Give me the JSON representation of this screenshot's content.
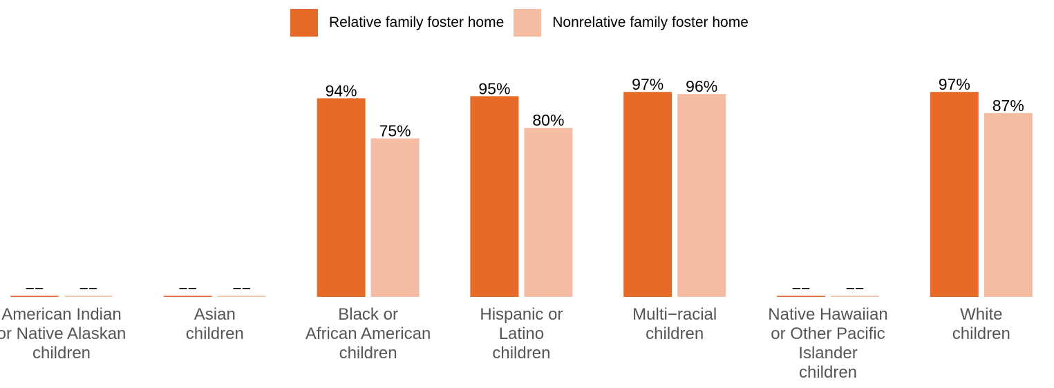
{
  "legend": {
    "items": [
      {
        "label": "Relative family foster home",
        "color": "#E86A28"
      },
      {
        "label": "Nonrelative family foster home",
        "color": "#F4BDA3"
      }
    ]
  },
  "chart_data": {
    "type": "bar",
    "title": "",
    "xlabel": "",
    "ylabel": "",
    "ylim": [
      0,
      100
    ],
    "grid": false,
    "legend_position": "top-center",
    "categories": [
      "American Indian\nor Native Alaskan\nchildren",
      "Asian\nchildren",
      "Black or\nAfrican American\nchildren",
      "Hispanic or\nLatino\nchildren",
      "Multi−racial\nchildren",
      "Native Hawaiian\nor Other Pacific\nIslander\nchildren",
      "White\nchildren"
    ],
    "series": [
      {
        "name": "Relative family foster home",
        "color": "#E86A28",
        "values": [
          null,
          null,
          94,
          95,
          97,
          null,
          97
        ],
        "labels": [
          "−−",
          "−−",
          "94%",
          "95%",
          "97%",
          "−−",
          "97%"
        ]
      },
      {
        "name": "Nonrelative family foster home",
        "color": "#F4BDA3",
        "values": [
          null,
          null,
          75,
          80,
          96,
          null,
          87
        ],
        "labels": [
          "−−",
          "−−",
          "75%",
          "80%",
          "96%",
          "−−",
          "87%"
        ]
      }
    ]
  }
}
